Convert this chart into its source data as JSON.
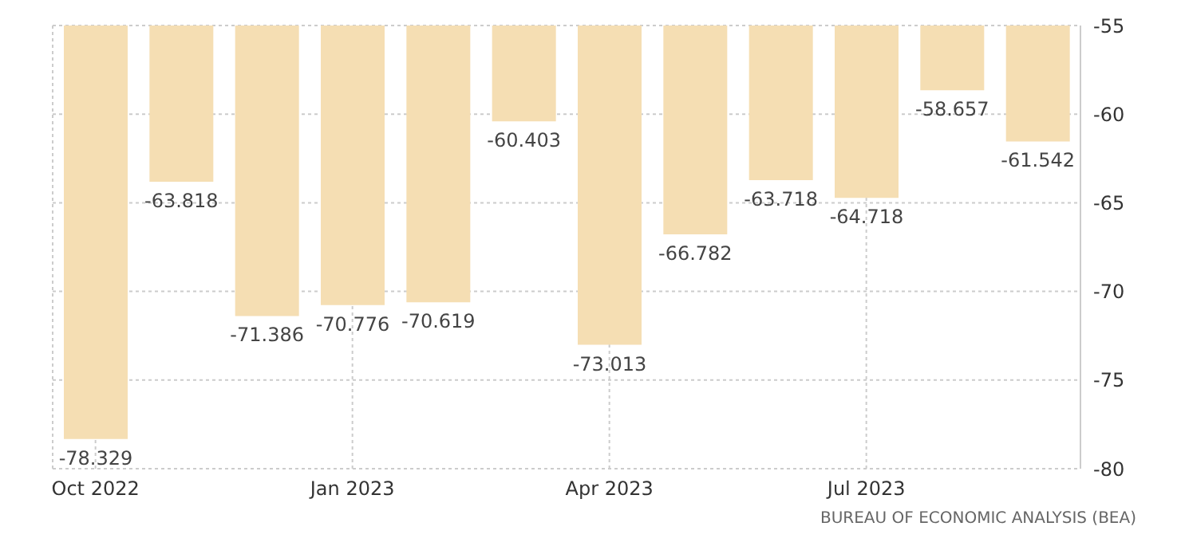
{
  "chart_data": {
    "type": "bar",
    "categories": [
      "Oct 2022",
      null,
      null,
      "Jan 2023",
      null,
      null,
      "Apr 2023",
      null,
      null,
      "Jul 2023",
      null,
      null
    ],
    "values": [
      -78.329,
      -63.818,
      -71.386,
      -70.776,
      -70.619,
      -60.403,
      -73.013,
      -66.782,
      -63.718,
      -64.718,
      -58.657,
      -61.542
    ],
    "color": "#f5deb3",
    "ylim": [
      -80,
      -55
    ],
    "yticks": [
      -80,
      -75,
      -70,
      -65,
      -60,
      -55
    ],
    "grid": true,
    "data_labels": true,
    "annotations": [
      "BUREAU OF ECONOMIC ANALYSIS (BEA)"
    ]
  }
}
